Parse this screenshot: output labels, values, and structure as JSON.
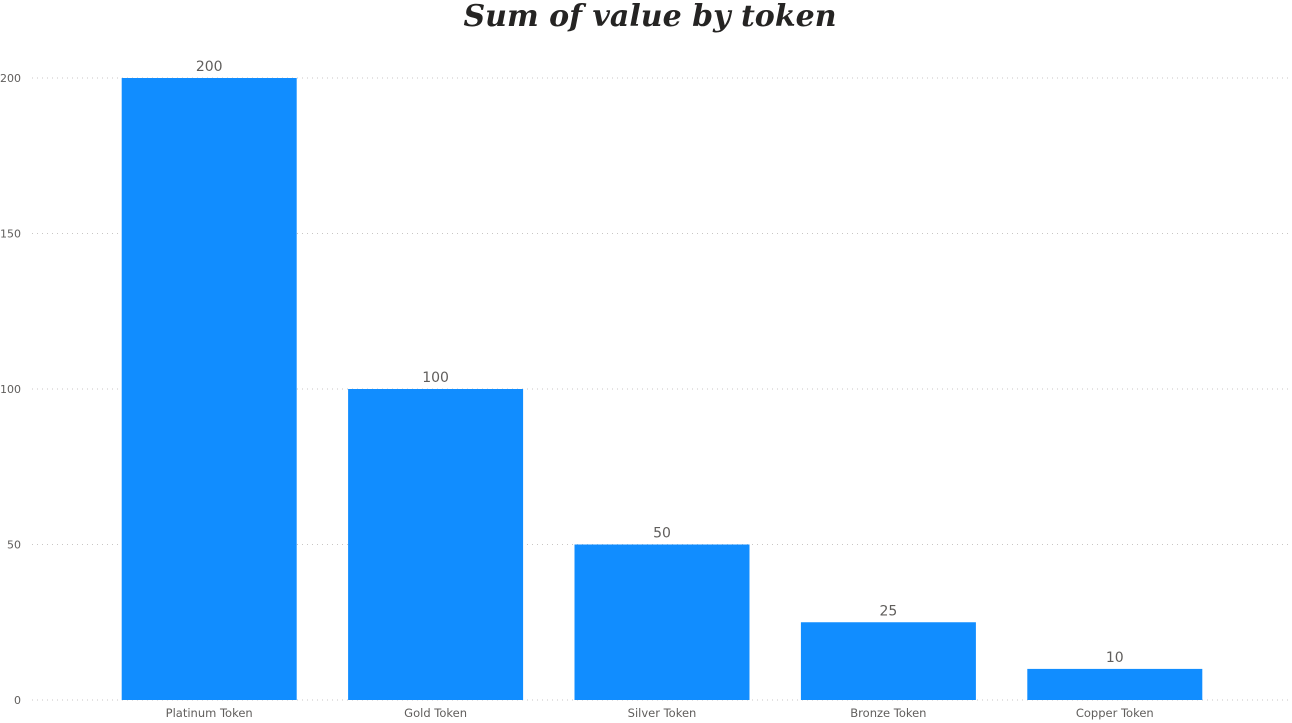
{
  "chart_data": {
    "type": "bar",
    "title": "Sum of value by token",
    "xlabel": "",
    "ylabel": "",
    "categories": [
      "Platinum Token",
      "Gold Token",
      "Silver Token",
      "Bronze Token",
      "Copper Token"
    ],
    "values": [
      200,
      100,
      50,
      25,
      10
    ],
    "data_labels": [
      "200",
      "100",
      "50",
      "25",
      "10"
    ],
    "ylim": [
      0,
      200
    ],
    "yticks": [
      0,
      50,
      100,
      150,
      200
    ],
    "ytick_labels": [
      "0",
      "50",
      "100",
      "150",
      "200"
    ],
    "grid": true,
    "legend": "none",
    "bar_color": "#118DFF"
  }
}
